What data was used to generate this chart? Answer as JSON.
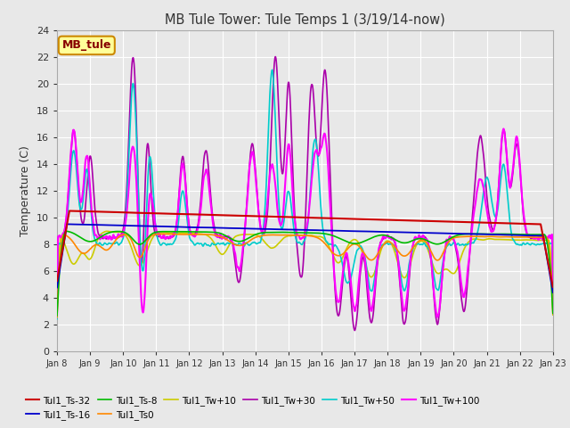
{
  "title": "MB Tule Tower: Tule Temps 1 (3/19/14-now)",
  "ylabel": "Temperature (C)",
  "xlim": [
    0,
    15
  ],
  "ylim": [
    0,
    24
  ],
  "yticks": [
    0,
    2,
    4,
    6,
    8,
    10,
    12,
    14,
    16,
    18,
    20,
    22,
    24
  ],
  "xtick_labels": [
    "Jan 8",
    "Jan 9",
    "Jan 10",
    "Jan 11",
    "Jan 12",
    "Jan 13",
    "Jan 14",
    "Jan 15",
    "Jan 16",
    "Jan 17",
    "Jan 18",
    "Jan 19",
    "Jan 20",
    "Jan 21",
    "Jan 22",
    "Jan 23"
  ],
  "background_color": "#e8e8e8",
  "grid_color": "#ffffff",
  "series": {
    "Tul1_Ts-32": {
      "color": "#cc0000",
      "lw": 1.5
    },
    "Tul1_Ts-16": {
      "color": "#0000cc",
      "lw": 1.3
    },
    "Tul1_Ts-8": {
      "color": "#00bb00",
      "lw": 1.2
    },
    "Tul1_Ts0": {
      "color": "#ff8800",
      "lw": 1.2
    },
    "Tul1_Tw+10": {
      "color": "#cccc00",
      "lw": 1.2
    },
    "Tul1_Tw+30": {
      "color": "#aa00aa",
      "lw": 1.2
    },
    "Tul1_Tw+50": {
      "color": "#00cccc",
      "lw": 1.2
    },
    "Tul1_Tw+100": {
      "color": "#ff00ff",
      "lw": 1.5
    }
  },
  "legend_label": "MB_tule",
  "legend_color": "#880000",
  "legend_bg": "#ffff99",
  "legend_border": "#cc8800"
}
